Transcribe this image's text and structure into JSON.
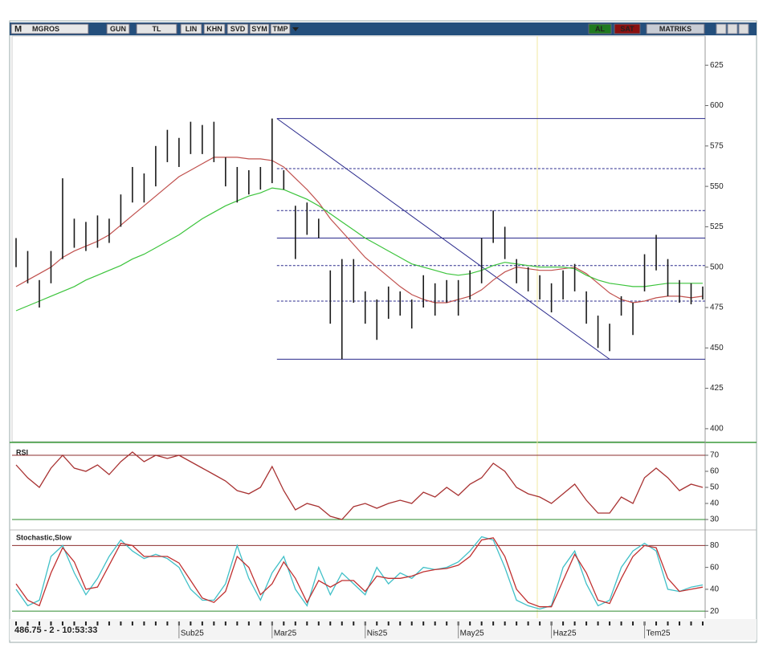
{
  "toolbar": {
    "prefix": "M",
    "symbol": "MGROS",
    "buttons": [
      "GUN",
      "TL",
      "LIN",
      "KHN",
      "SVD",
      "SYM",
      "TMP"
    ],
    "buy": "AL",
    "sell": "SAT",
    "brand": "MATRIKS"
  },
  "status": "486.75 - 2 - 10:53:33",
  "chart_data": [
    {
      "type": "ohlc",
      "categories": [
        null,
        null,
        null,
        null,
        null,
        null,
        null,
        null,
        null,
        null,
        null,
        null,
        null,
        null,
        "Sub25",
        null,
        null,
        null,
        null,
        null,
        null,
        null,
        "Mar25",
        null,
        null,
        null,
        null,
        null,
        null,
        null,
        "Nis25",
        null,
        null,
        null,
        null,
        null,
        null,
        null,
        "May25",
        null,
        null,
        null,
        null,
        null,
        null,
        null,
        "Haz25",
        null,
        null,
        null,
        null,
        null,
        null,
        null,
        "Tem25",
        null,
        null,
        null,
        null,
        null
      ],
      "high": [
        518,
        510,
        492,
        510,
        555,
        530,
        528,
        532,
        530,
        545,
        562,
        558,
        575,
        585,
        580,
        590,
        588,
        590,
        568,
        562,
        560,
        562,
        592,
        560,
        538,
        540,
        530,
        498,
        505,
        505,
        485,
        480,
        488,
        485,
        480,
        495,
        490,
        492,
        492,
        498,
        518,
        535,
        525,
        505,
        500,
        495,
        490,
        498,
        502,
        485,
        470,
        465,
        482,
        478,
        508,
        520,
        505,
        492,
        490,
        488
      ],
      "low": [
        500,
        490,
        475,
        490,
        505,
        512,
        510,
        512,
        515,
        525,
        540,
        540,
        550,
        565,
        562,
        570,
        570,
        565,
        550,
        540,
        545,
        548,
        552,
        548,
        505,
        520,
        518,
        465,
        443,
        478,
        465,
        455,
        468,
        470,
        462,
        475,
        470,
        478,
        470,
        480,
        490,
        515,
        505,
        490,
        485,
        480,
        472,
        480,
        485,
        465,
        450,
        448,
        470,
        458,
        485,
        498,
        482,
        478,
        477,
        480
      ],
      "color": "#1a1a1a",
      "ma": [
        {
          "color": "#c0504d",
          "values": [
            488,
            492,
            496,
            500,
            506,
            510,
            513,
            516,
            520,
            526,
            532,
            538,
            544,
            550,
            556,
            560,
            564,
            568,
            568,
            568,
            567,
            567,
            566,
            562,
            555,
            548,
            540,
            530,
            522,
            514,
            506,
            500,
            494,
            488,
            483,
            480,
            478,
            478,
            480,
            482,
            486,
            492,
            497,
            500,
            499,
            498,
            498,
            499,
            500,
            496,
            490,
            484,
            480,
            478,
            479,
            481,
            482,
            482,
            481,
            482
          ]
        },
        {
          "color": "#3cc43c",
          "values": [
            473,
            476,
            479,
            482,
            485,
            488,
            492,
            495,
            498,
            501,
            505,
            508,
            512,
            516,
            520,
            525,
            530,
            534,
            538,
            541,
            544,
            546,
            549,
            548,
            545,
            542,
            538,
            533,
            528,
            523,
            518,
            514,
            510,
            506,
            502,
            500,
            498,
            496,
            495,
            496,
            498,
            501,
            503,
            502,
            501,
            500,
            500,
            500,
            499,
            495,
            492,
            490,
            489,
            488,
            488,
            489,
            490,
            490,
            490,
            490
          ]
        }
      ],
      "levels": [
        {
          "value": 592,
          "style": "solid"
        },
        {
          "value": 561,
          "style": "dashed"
        },
        {
          "value": 535,
          "style": "dashed"
        },
        {
          "value": 518,
          "style": "solid"
        },
        {
          "value": 501,
          "style": "dashed"
        },
        {
          "value": 479,
          "style": "dashed"
        },
        {
          "value": 443,
          "style": "solid"
        }
      ],
      "level_color": "#2a2a8c",
      "trendline": {
        "x": [
          22,
          51
        ],
        "y": [
          592,
          443
        ]
      },
      "ylim": [
        392,
        643
      ],
      "yticks": [
        400,
        425,
        450,
        475,
        500,
        525,
        550,
        575,
        600,
        625
      ]
    },
    {
      "type": "line",
      "title": "RSI",
      "series": [
        {
          "color": "#a83232",
          "values": [
            64,
            56,
            50,
            62,
            70,
            62,
            60,
            64,
            58,
            66,
            72,
            66,
            70,
            68,
            70,
            66,
            62,
            58,
            54,
            48,
            46,
            50,
            63,
            48,
            36,
            40,
            38,
            32,
            30,
            38,
            40,
            37,
            40,
            42,
            40,
            47,
            44,
            50,
            45,
            52,
            56,
            65,
            60,
            50,
            46,
            44,
            40,
            46,
            52,
            42,
            34,
            34,
            44,
            40,
            56,
            62,
            56,
            48,
            52,
            50
          ]
        }
      ],
      "reference_lines": [
        {
          "value": 70,
          "color": "#8b2e2e"
        },
        {
          "value": 30,
          "color": "#2e8b2e"
        }
      ],
      "ylim": [
        25,
        75
      ],
      "yticks": [
        30,
        40,
        50,
        60,
        70
      ]
    },
    {
      "type": "line",
      "title": "Stochastic,Slow",
      "series": [
        {
          "color": "#40c0c8",
          "values": [
            40,
            25,
            30,
            70,
            80,
            55,
            35,
            50,
            70,
            85,
            75,
            68,
            72,
            68,
            60,
            40,
            30,
            30,
            45,
            80,
            50,
            30,
            55,
            70,
            40,
            25,
            60,
            35,
            55,
            45,
            35,
            60,
            45,
            55,
            50,
            60,
            58,
            60,
            65,
            75,
            88,
            85,
            60,
            30,
            25,
            22,
            25,
            60,
            75,
            45,
            25,
            30,
            60,
            75,
            82,
            75,
            40,
            38,
            42,
            44
          ]
        },
        {
          "color": "#c03030",
          "values": [
            45,
            30,
            25,
            55,
            78,
            65,
            40,
            42,
            62,
            82,
            80,
            70,
            70,
            70,
            64,
            48,
            32,
            28,
            38,
            70,
            60,
            35,
            45,
            65,
            50,
            28,
            48,
            42,
            48,
            48,
            38,
            52,
            50,
            50,
            52,
            56,
            58,
            59,
            62,
            70,
            85,
            87,
            70,
            40,
            28,
            24,
            24,
            48,
            72,
            55,
            30,
            27,
            50,
            70,
            80,
            78,
            50,
            38,
            40,
            42
          ]
        }
      ],
      "reference_lines": [
        {
          "value": 80,
          "color": "#8b2e2e"
        },
        {
          "value": 20,
          "color": "#2e8b2e"
        }
      ],
      "ylim": [
        15,
        92
      ],
      "yticks": [
        20,
        40,
        60,
        80
      ]
    }
  ]
}
